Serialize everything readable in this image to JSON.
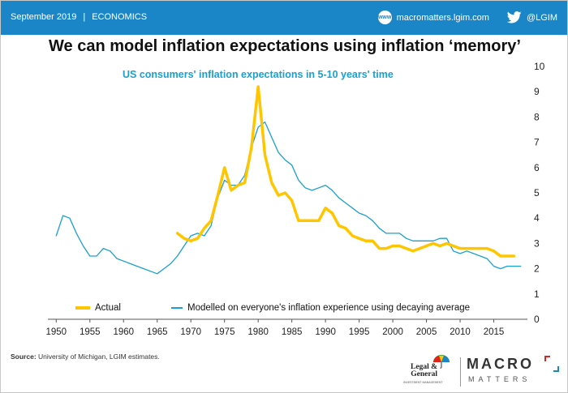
{
  "header": {
    "date": "September 2019",
    "separator": "|",
    "section": "ECONOMICS",
    "website": "macromatters.lgim.com",
    "website_icon_text": "www",
    "twitter_handle": "@LGIM",
    "bar_color": "#1a86c8"
  },
  "headline": "We can model inflation expectations using inflation ‘memory’",
  "chart_data": {
    "type": "line",
    "title": "US consumers' inflation expectations in 5-10 years' time",
    "xlabel": "",
    "ylabel": "",
    "xlim": [
      1949,
      2020
    ],
    "ylim": [
      0,
      10
    ],
    "x_ticks": [
      1950,
      1955,
      1960,
      1965,
      1970,
      1975,
      1980,
      1985,
      1990,
      1995,
      2000,
      2005,
      2010,
      2015
    ],
    "y_ticks": [
      0,
      1,
      2,
      3,
      4,
      5,
      6,
      7,
      8,
      9,
      10
    ],
    "y_axis_position": "right",
    "grid": false,
    "legend_position": "bottom",
    "series": [
      {
        "name": "Actual",
        "color": "#ffc600",
        "points": [
          [
            1968,
            3.4
          ],
          [
            1969,
            3.2
          ],
          [
            1970,
            3.1
          ],
          [
            1971,
            3.2
          ],
          [
            1972,
            3.6
          ],
          [
            1973,
            3.9
          ],
          [
            1974,
            4.9
          ],
          [
            1975,
            6.0
          ],
          [
            1976,
            5.1
          ],
          [
            1977,
            5.3
          ],
          [
            1978,
            5.4
          ],
          [
            1979,
            6.8
          ],
          [
            1980,
            9.2
          ],
          [
            1981,
            6.5
          ],
          [
            1982,
            5.4
          ],
          [
            1983,
            4.9
          ],
          [
            1984,
            5.0
          ],
          [
            1985,
            4.7
          ],
          [
            1986,
            3.9
          ],
          [
            1987,
            3.9
          ],
          [
            1988,
            3.9
          ],
          [
            1989,
            3.9
          ],
          [
            1990,
            4.4
          ],
          [
            1991,
            4.2
          ],
          [
            1992,
            3.7
          ],
          [
            1993,
            3.6
          ],
          [
            1994,
            3.3
          ],
          [
            1995,
            3.2
          ],
          [
            1996,
            3.1
          ],
          [
            1997,
            3.1
          ],
          [
            1998,
            2.8
          ],
          [
            1999,
            2.8
          ],
          [
            2000,
            2.9
          ],
          [
            2001,
            2.9
          ],
          [
            2002,
            2.8
          ],
          [
            2003,
            2.7
          ],
          [
            2004,
            2.8
          ],
          [
            2005,
            2.9
          ],
          [
            2006,
            3.0
          ],
          [
            2007,
            2.9
          ],
          [
            2008,
            3.0
          ],
          [
            2009,
            2.9
          ],
          [
            2010,
            2.8
          ],
          [
            2011,
            2.8
          ],
          [
            2012,
            2.8
          ],
          [
            2013,
            2.8
          ],
          [
            2014,
            2.8
          ],
          [
            2015,
            2.7
          ],
          [
            2016,
            2.5
          ],
          [
            2017,
            2.5
          ],
          [
            2018,
            2.5
          ]
        ]
      },
      {
        "name": "Modelled on everyone's inflation experience using decaying average",
        "color": "#1a9fd1",
        "points": [
          [
            1950,
            3.3
          ],
          [
            1951,
            4.1
          ],
          [
            1952,
            4.0
          ],
          [
            1953,
            3.4
          ],
          [
            1954,
            2.9
          ],
          [
            1955,
            2.5
          ],
          [
            1956,
            2.5
          ],
          [
            1957,
            2.8
          ],
          [
            1958,
            2.7
          ],
          [
            1959,
            2.4
          ],
          [
            1960,
            2.3
          ],
          [
            1961,
            2.2
          ],
          [
            1962,
            2.1
          ],
          [
            1963,
            2.0
          ],
          [
            1964,
            1.9
          ],
          [
            1965,
            1.8
          ],
          [
            1966,
            2.0
          ],
          [
            1967,
            2.2
          ],
          [
            1968,
            2.5
          ],
          [
            1969,
            2.9
          ],
          [
            1970,
            3.3
          ],
          [
            1971,
            3.4
          ],
          [
            1972,
            3.3
          ],
          [
            1973,
            3.7
          ],
          [
            1974,
            4.8
          ],
          [
            1975,
            5.5
          ],
          [
            1976,
            5.3
          ],
          [
            1977,
            5.3
          ],
          [
            1978,
            5.7
          ],
          [
            1979,
            6.8
          ],
          [
            1980,
            7.6
          ],
          [
            1981,
            7.8
          ],
          [
            1982,
            7.2
          ],
          [
            1983,
            6.6
          ],
          [
            1984,
            6.3
          ],
          [
            1985,
            6.1
          ],
          [
            1986,
            5.5
          ],
          [
            1987,
            5.2
          ],
          [
            1988,
            5.1
          ],
          [
            1989,
            5.2
          ],
          [
            1990,
            5.3
          ],
          [
            1991,
            5.1
          ],
          [
            1992,
            4.8
          ],
          [
            1993,
            4.6
          ],
          [
            1994,
            4.4
          ],
          [
            1995,
            4.2
          ],
          [
            1996,
            4.1
          ],
          [
            1997,
            3.9
          ],
          [
            1998,
            3.6
          ],
          [
            1999,
            3.4
          ],
          [
            2000,
            3.4
          ],
          [
            2001,
            3.4
          ],
          [
            2002,
            3.2
          ],
          [
            2003,
            3.1
          ],
          [
            2004,
            3.1
          ],
          [
            2005,
            3.1
          ],
          [
            2006,
            3.1
          ],
          [
            2007,
            3.2
          ],
          [
            2008,
            3.2
          ],
          [
            2009,
            2.7
          ],
          [
            2010,
            2.6
          ],
          [
            2011,
            2.7
          ],
          [
            2012,
            2.6
          ],
          [
            2013,
            2.5
          ],
          [
            2014,
            2.4
          ],
          [
            2015,
            2.1
          ],
          [
            2016,
            2.0
          ],
          [
            2017,
            2.1
          ],
          [
            2018,
            2.1
          ],
          [
            2019,
            2.1
          ]
        ]
      }
    ]
  },
  "footer": {
    "source_label": "Source:",
    "source_text": "University of Michigan, LGIM estimates.",
    "lg_logo_line1": "Legal &",
    "lg_logo_line2": "General",
    "lg_logo_sub": "INVESTMENT MANAGEMENT",
    "macro_word": "MACRO",
    "macro_sub": "MATTERS",
    "macro_accent": "#e2231a"
  }
}
